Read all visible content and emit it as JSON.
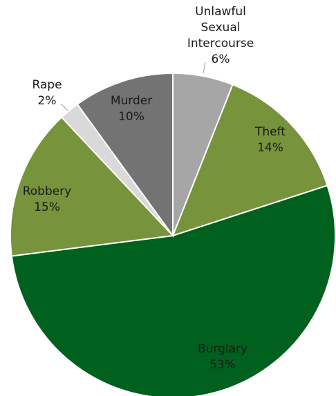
{
  "chart_data": {
    "type": "pie",
    "title": "",
    "slices": [
      {
        "label_lines": [
          "Unlawful",
          "Sexual",
          "Intercourse"
        ],
        "pct_text": "6%",
        "value": 6,
        "color": "#a6a6a6"
      },
      {
        "label_lines": [
          "Theft"
        ],
        "pct_text": "14%",
        "value": 14,
        "color": "#77933c"
      },
      {
        "label_lines": [
          "Burglary"
        ],
        "pct_text": "53%",
        "value": 53,
        "color": "#00611e"
      },
      {
        "label_lines": [
          "Robbery"
        ],
        "pct_text": "15%",
        "value": 15,
        "color": "#77933c"
      },
      {
        "label_lines": [
          "Rape"
        ],
        "pct_text": "2%",
        "value": 2,
        "color": "#d9d9d9"
      },
      {
        "label_lines": [
          "Murder"
        ],
        "pct_text": "10%",
        "value": 10,
        "color": "#737373"
      }
    ]
  }
}
